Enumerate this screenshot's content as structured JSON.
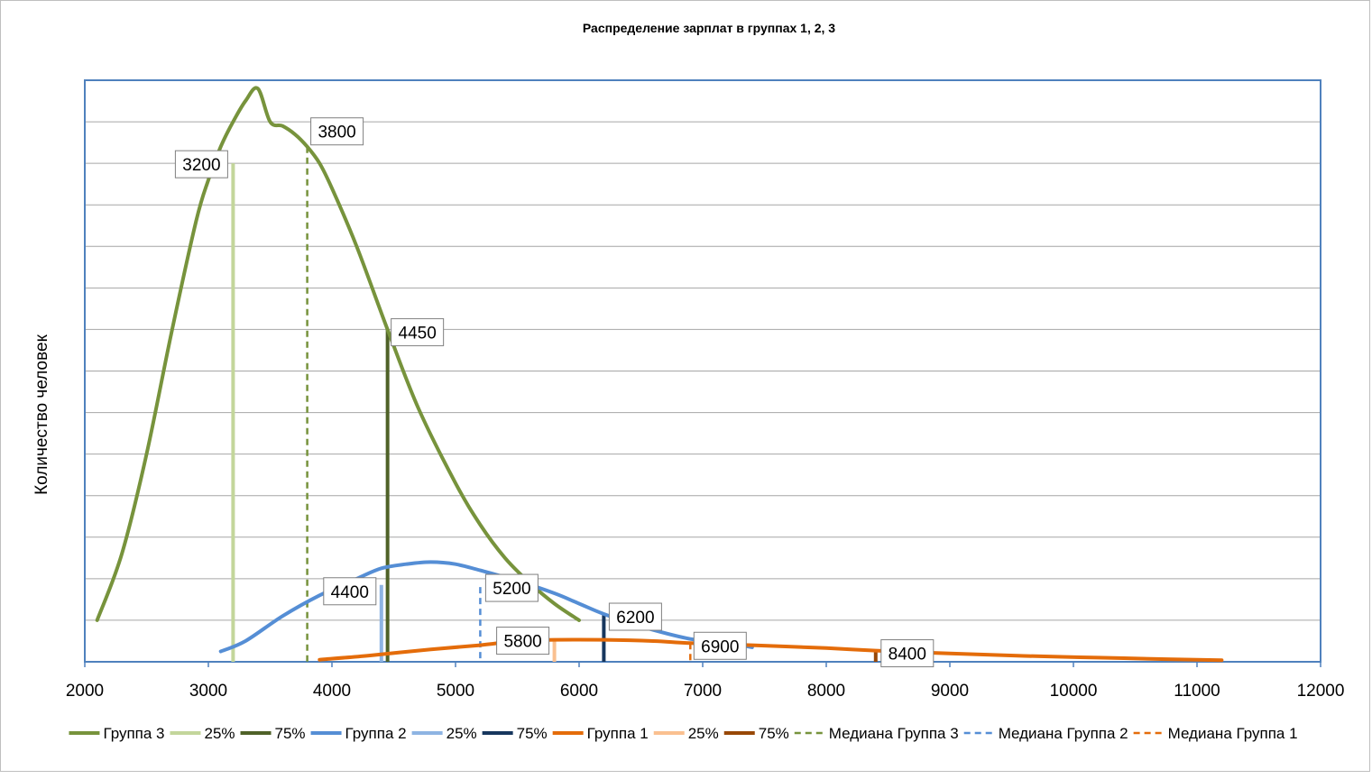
{
  "chart_data": {
    "type": "line",
    "title": "Распределение зарплат в группах 1, 2, 3",
    "ylabel": "Количество человек",
    "xlabel": "",
    "xlim": [
      2000,
      12000
    ],
    "ylim": [
      0,
      140
    ],
    "x_ticks": [
      2000,
      3000,
      4000,
      5000,
      6000,
      7000,
      8000,
      9000,
      10000,
      11000,
      12000
    ],
    "grid": true,
    "y_tick_labels_shown": false,
    "legend_position": "bottom",
    "series": [
      {
        "name": "Группа 3",
        "color": "#77933C",
        "points": [
          [
            2100,
            10
          ],
          [
            2300,
            26
          ],
          [
            2500,
            50
          ],
          [
            2700,
            79
          ],
          [
            2900,
            106
          ],
          [
            3000,
            116
          ],
          [
            3100,
            124
          ],
          [
            3200,
            130
          ],
          [
            3300,
            135
          ],
          [
            3400,
            138
          ],
          [
            3500,
            130
          ],
          [
            3600,
            129
          ],
          [
            3700,
            127
          ],
          [
            3800,
            124
          ],
          [
            3900,
            120
          ],
          [
            4000,
            114
          ],
          [
            4200,
            100
          ],
          [
            4450,
            80
          ],
          [
            4700,
            61
          ],
          [
            5000,
            43
          ],
          [
            5200,
            33
          ],
          [
            5400,
            25
          ],
          [
            5600,
            19
          ],
          [
            5800,
            14
          ],
          [
            6000,
            10
          ]
        ]
      },
      {
        "name": "Группа 2",
        "color": "#558ED5",
        "points": [
          [
            3100,
            2.5
          ],
          [
            3300,
            5
          ],
          [
            3600,
            11
          ],
          [
            3900,
            16
          ],
          [
            4200,
            20
          ],
          [
            4400,
            22.5
          ],
          [
            4600,
            23.5
          ],
          [
            4800,
            24
          ],
          [
            5000,
            23.5
          ],
          [
            5200,
            22
          ],
          [
            5500,
            19.5
          ],
          [
            5800,
            16.5
          ],
          [
            6000,
            14
          ],
          [
            6200,
            11.5
          ],
          [
            6500,
            8.5
          ],
          [
            6900,
            5.5
          ],
          [
            7200,
            4.5
          ],
          [
            7400,
            3.5
          ]
        ]
      },
      {
        "name": "Группа 1",
        "color": "#E46C0A",
        "points": [
          [
            3900,
            0.5
          ],
          [
            4300,
            1.5
          ],
          [
            4800,
            3
          ],
          [
            5200,
            4
          ],
          [
            5500,
            5
          ],
          [
            5800,
            5.3
          ],
          [
            6200,
            5.3
          ],
          [
            6600,
            5
          ],
          [
            6900,
            4.5
          ],
          [
            7400,
            4
          ],
          [
            8000,
            3.3
          ],
          [
            8400,
            2.7
          ],
          [
            9000,
            2
          ],
          [
            9600,
            1.4
          ],
          [
            10200,
            1
          ],
          [
            10800,
            0.6
          ],
          [
            11200,
            0.4
          ]
        ]
      }
    ],
    "markers": [
      {
        "name": "25%",
        "group": "Группа 3",
        "x": 3200,
        "y": 120,
        "color": "#C3D69B",
        "style": "solid",
        "label": "3200"
      },
      {
        "name": "Медиана Группа 3",
        "group": "Группа 3",
        "x": 3800,
        "y": 124,
        "color": "#77933C",
        "style": "dashed",
        "label": "3800"
      },
      {
        "name": "75%",
        "group": "Группа 3",
        "x": 4450,
        "y": 80,
        "color": "#4F6228",
        "style": "solid",
        "label": "4450"
      },
      {
        "name": "25%",
        "group": "Группа 2",
        "x": 4400,
        "y": 18.5,
        "color": "#8EB4E3",
        "style": "solid",
        "label": "4400"
      },
      {
        "name": "Медиана Группа 2",
        "group": "Группа 2",
        "x": 5200,
        "y": 18,
        "color": "#558ED5",
        "style": "dashed",
        "label": "5200"
      },
      {
        "name": "75%",
        "group": "Группа 2",
        "x": 6200,
        "y": 11.5,
        "color": "#17375E",
        "style": "solid",
        "label": "6200"
      },
      {
        "name": "25%",
        "group": "Группа 1",
        "x": 5800,
        "y": 5.3,
        "color": "#FAC090",
        "style": "solid",
        "label": "5800"
      },
      {
        "name": "Медиана Группа 1",
        "group": "Группа 1",
        "x": 6900,
        "y": 4.5,
        "color": "#E46C0A",
        "style": "dashed",
        "label": "6900"
      },
      {
        "name": "75%",
        "group": "Группа 1",
        "x": 8400,
        "y": 2.7,
        "color": "#984807",
        "style": "solid",
        "label": "8400"
      }
    ],
    "legend": [
      {
        "label": "Группа 3",
        "color": "#77933C",
        "style": "solid"
      },
      {
        "label": "25%",
        "color": "#C3D69B",
        "style": "solid"
      },
      {
        "label": "75%",
        "color": "#4F6228",
        "style": "solid"
      },
      {
        "label": "Группа 2",
        "color": "#558ED5",
        "style": "solid"
      },
      {
        "label": "25%",
        "color": "#8EB4E3",
        "style": "solid"
      },
      {
        "label": "75%",
        "color": "#17375E",
        "style": "solid"
      },
      {
        "label": "Группа 1",
        "color": "#E46C0A",
        "style": "solid"
      },
      {
        "label": "25%",
        "color": "#FAC090",
        "style": "solid"
      },
      {
        "label": "75%",
        "color": "#984807",
        "style": "solid"
      },
      {
        "label": "Медиана Группа 3",
        "color": "#77933C",
        "style": "dashed"
      },
      {
        "label": "Медиана Группа 2",
        "color": "#558ED5",
        "style": "dashed"
      },
      {
        "label": "Медиана Группа 1",
        "color": "#E46C0A",
        "style": "dashed"
      }
    ]
  }
}
